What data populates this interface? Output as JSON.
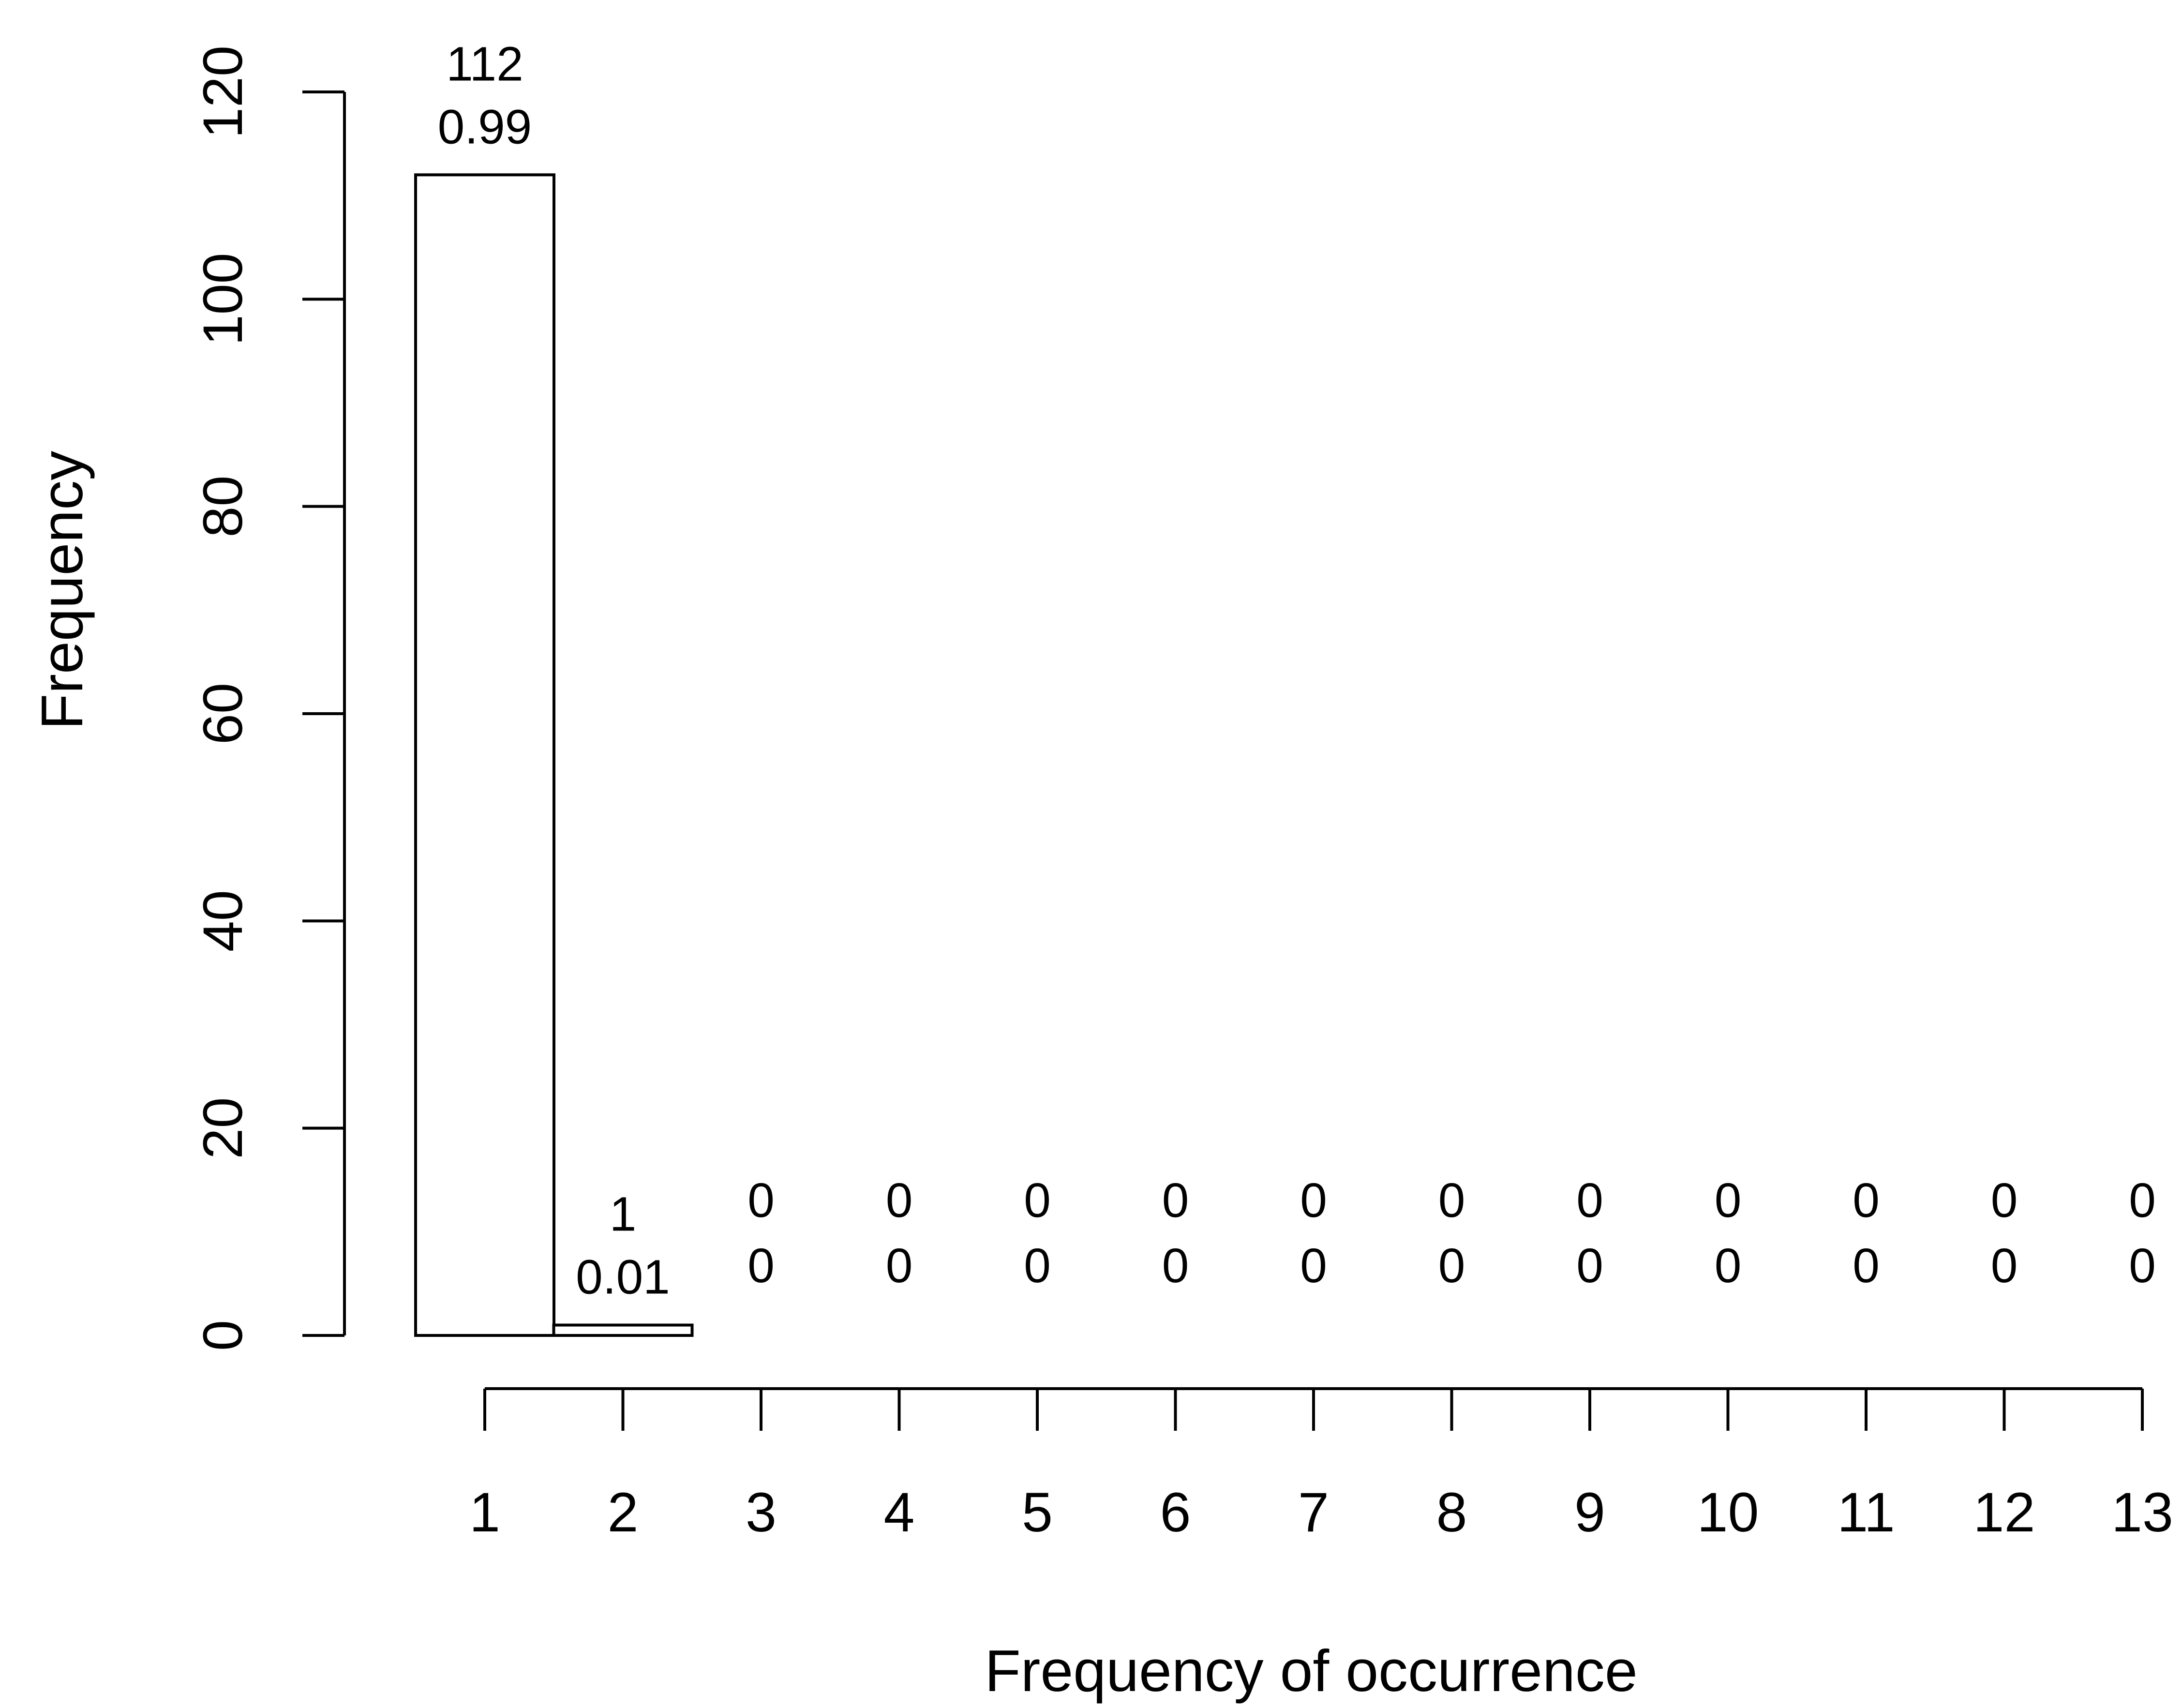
{
  "chart_data": {
    "type": "bar",
    "title": "",
    "xlabel": "Frequency of occurrence",
    "ylabel": "Frequency",
    "categories": [
      "1",
      "2",
      "3",
      "4",
      "5",
      "6",
      "7",
      "8",
      "9",
      "10",
      "11",
      "12",
      "13"
    ],
    "values": [
      112,
      1,
      0,
      0,
      0,
      0,
      0,
      0,
      0,
      0,
      0,
      0,
      0
    ],
    "count_labels": [
      "112",
      "1",
      "0",
      "0",
      "0",
      "0",
      "0",
      "0",
      "0",
      "0",
      "0",
      "0",
      "0"
    ],
    "proportion_labels": [
      "0.99",
      "0.01",
      "0",
      "0",
      "0",
      "0",
      "0",
      "0",
      "0",
      "0",
      "0",
      "0",
      "0"
    ],
    "y_ticks": [
      0,
      20,
      40,
      60,
      80,
      100,
      120
    ],
    "ylim": [
      0,
      120
    ],
    "grid": false,
    "legend": "none"
  }
}
